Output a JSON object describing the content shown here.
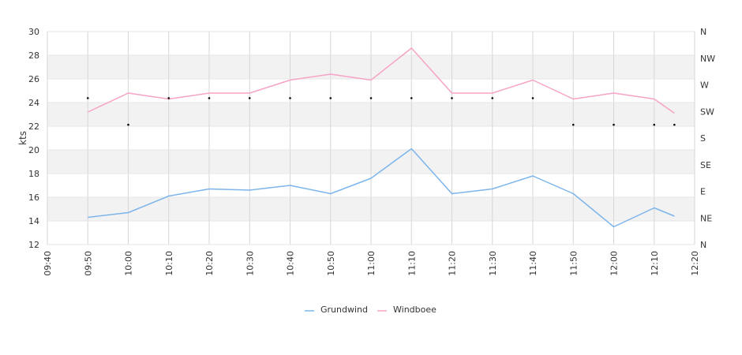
{
  "chart_data": {
    "type": "line",
    "x": [
      "09:50",
      "10:00",
      "10:10",
      "10:20",
      "10:30",
      "10:40",
      "10:50",
      "11:00",
      "11:10",
      "11:20",
      "11:30",
      "11:40",
      "11:50",
      "12:00",
      "12:10",
      "12:15"
    ],
    "x_ticks": [
      "09:40",
      "09:50",
      "10:00",
      "10:10",
      "10:20",
      "10:30",
      "10:40",
      "10:50",
      "11:00",
      "11:10",
      "11:20",
      "11:30",
      "11:40",
      "11:50",
      "12:00",
      "12:10",
      "12:20"
    ],
    "xlim": [
      "09:40",
      "12:20"
    ],
    "ylabel": "kts",
    "ylim": [
      12,
      30
    ],
    "y_ticks": [
      "12",
      "14",
      "16",
      "18",
      "20",
      "22",
      "24",
      "26",
      "28",
      "30"
    ],
    "y2_ticks": [
      "N",
      "NE",
      "E",
      "SE",
      "S",
      "SW",
      "W",
      "NW",
      "N"
    ],
    "series": [
      {
        "name": "Grundwind",
        "color": "#7cb5ec",
        "values": [
          14.3,
          14.7,
          16.1,
          16.7,
          16.6,
          17.0,
          16.3,
          17.6,
          20.1,
          16.3,
          16.7,
          17.8,
          16.3,
          13.5,
          15.1,
          14.4
        ]
      },
      {
        "name": "Windboee",
        "color": "#f7a3c6",
        "values": [
          23.2,
          24.8,
          24.3,
          24.8,
          24.8,
          25.9,
          26.4,
          25.9,
          28.6,
          24.8,
          24.8,
          25.9,
          24.3,
          24.8,
          24.3,
          23.1
        ]
      }
    ],
    "direction": {
      "x": [
        "09:50",
        "10:00",
        "10:10",
        "10:20",
        "10:30",
        "10:40",
        "10:50",
        "11:00",
        "11:10",
        "11:20",
        "11:30",
        "11:40",
        "11:50",
        "12:00",
        "12:10",
        "12:15"
      ],
      "values": [
        "SW",
        "S",
        "SW",
        "SW",
        "SW",
        "SW",
        "SW",
        "SW",
        "SW",
        "SW",
        "SW",
        "SW",
        "S",
        "S",
        "S",
        "S"
      ]
    },
    "grid": true,
    "band_color": "#f2f2f2",
    "legend_position": "bottom-center"
  }
}
